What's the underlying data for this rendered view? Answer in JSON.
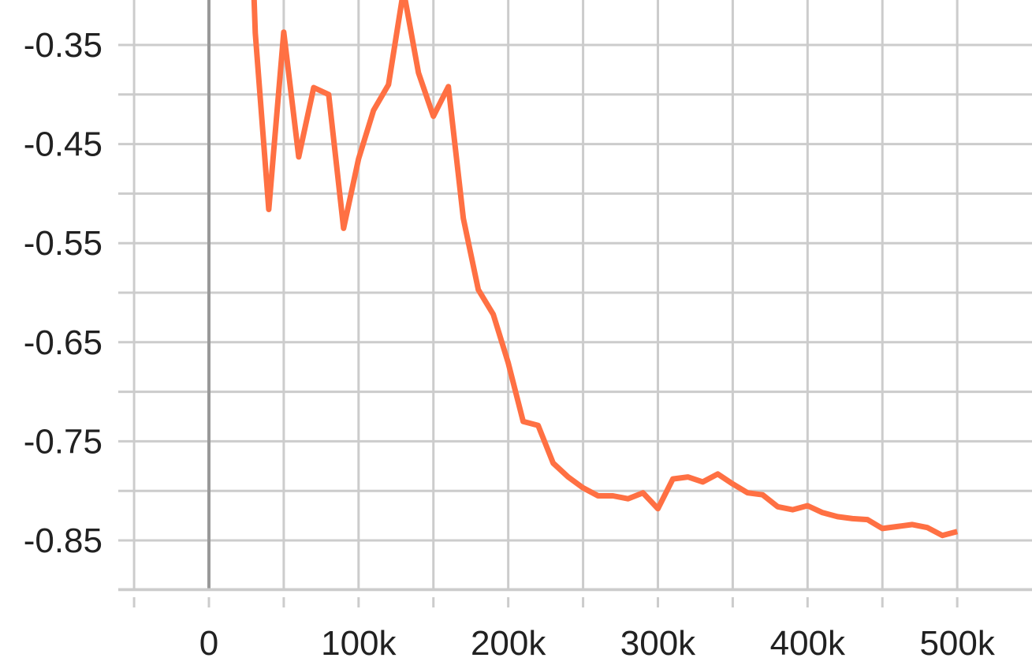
{
  "colors": {
    "series": "#ff7043",
    "grid": "#cccccc",
    "zero_line": "#999999",
    "text": "#212121",
    "background": "#ffffff"
  },
  "chart_data": {
    "type": "line",
    "title": "",
    "xlabel": "",
    "ylabel": "",
    "xlim": [
      -50000,
      550000
    ],
    "ylim": [
      -0.9,
      -0.3
    ],
    "x_ticks": [
      0,
      100000,
      200000,
      300000,
      400000,
      500000
    ],
    "x_tick_labels": [
      "0",
      "100k",
      "200k",
      "300k",
      "400k",
      "500k"
    ],
    "y_ticks": [
      -0.35,
      -0.45,
      -0.55,
      -0.65,
      -0.75,
      -0.85
    ],
    "y_tick_labels": [
      "-0.35",
      "-0.45",
      "-0.55",
      "-0.65",
      "-0.75",
      "-0.85"
    ],
    "grid": true,
    "legend": "none",
    "series": [
      {
        "x": [
          30000,
          31000,
          40000,
          50000,
          60000,
          70000,
          80000,
          90000,
          100000,
          110000,
          120000,
          130000,
          140000,
          150000,
          160000,
          170000,
          180000,
          190000,
          200000,
          210000,
          220000,
          230000,
          240000,
          250000,
          260000,
          270000,
          280000,
          290000,
          300000,
          310000,
          320000,
          330000,
          340000,
          350000,
          360000,
          370000,
          380000,
          390000,
          400000,
          410000,
          420000,
          430000,
          440000,
          450000,
          460000,
          470000,
          480000,
          490000,
          500000
        ],
        "y": [
          -0.295,
          -0.338,
          -0.516,
          -0.337,
          -0.463,
          -0.393,
          -0.4,
          -0.535,
          -0.465,
          -0.416,
          -0.39,
          -0.295,
          -0.378,
          -0.422,
          -0.392,
          -0.525,
          -0.597,
          -0.622,
          -0.671,
          -0.73,
          -0.734,
          -0.772,
          -0.786,
          -0.797,
          -0.805,
          -0.805,
          -0.808,
          -0.802,
          -0.818,
          -0.788,
          -0.786,
          -0.791,
          -0.783,
          -0.793,
          -0.802,
          -0.804,
          -0.816,
          -0.819,
          -0.815,
          -0.822,
          -0.826,
          -0.828,
          -0.829,
          -0.838,
          -0.836,
          -0.834,
          -0.837,
          -0.845,
          -0.841
        ]
      }
    ]
  }
}
